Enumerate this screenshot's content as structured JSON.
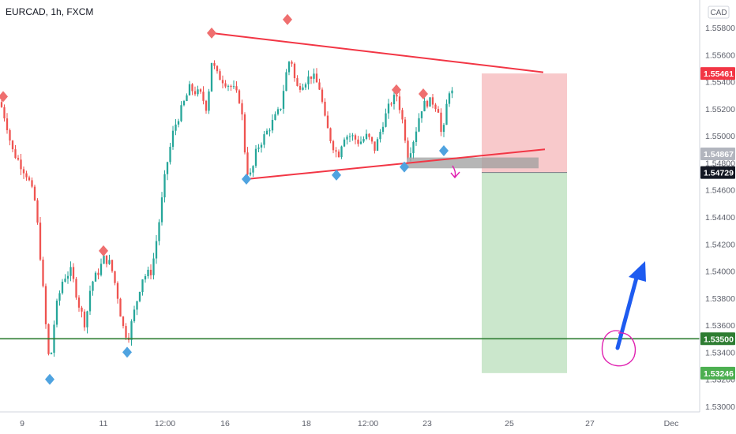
{
  "chart_data": {
    "type": "candlestick",
    "title": "EURCAD, 1h, FXCM",
    "currency": "CAD",
    "y_range": [
      1.529,
      1.5585
    ],
    "y_ticks": [
      "1.55800",
      "1.55600",
      "1.55400",
      "1.55200",
      "1.55000",
      "1.54800",
      "1.54600",
      "1.54400",
      "1.54200",
      "1.54000",
      "1.53800",
      "1.53600",
      "1.53400",
      "1.53200",
      "1.53000"
    ],
    "y_top_partial": "1.55800",
    "x_ticks": [
      "9",
      "11",
      "12:00",
      "16",
      "18",
      "12:00",
      "23",
      "25",
      "27",
      "Dec"
    ],
    "price_badges": [
      {
        "label": "1.55461",
        "value": 1.55461,
        "color": "#f23645"
      },
      {
        "label": "1.54867",
        "value": 1.54867,
        "color": "#b2b5be"
      },
      {
        "label": "1.54729",
        "value": 1.54729,
        "color": "#131722"
      },
      {
        "label": "1.53500",
        "value": 1.535,
        "color": "#2e7d32"
      },
      {
        "label": "1.53246",
        "value": 1.53246,
        "color": "#4caf50"
      }
    ],
    "horizontal_line": {
      "value": 1.535,
      "color": "#2e7d32"
    },
    "position": {
      "entry": 1.54729,
      "stop": 1.55461,
      "target": 1.53246,
      "loss_color": "#f8c6c8",
      "profit_color": "#c8e6c9"
    },
    "colors": {
      "up": "#26a69a",
      "down": "#ef5350",
      "trend": "#f23645",
      "pivot_high": "#ef6f6f",
      "pivot_low": "#4fa3e0",
      "arrow": "#1e5bf0",
      "circle": "#e020b0",
      "highlight": "#9e9e9e"
    }
  }
}
